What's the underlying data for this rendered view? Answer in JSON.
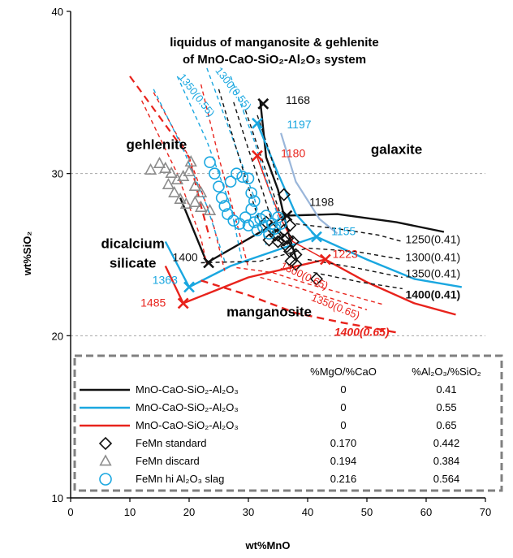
{
  "chart_data": {
    "type": "scatter",
    "title_lines": [
      "liquidus of manganosite & gehlenite",
      "of MnO-CaO-SiO₂-Al₂O₃ system"
    ],
    "xlabel": "wt%MnO",
    "ylabel": "wt%SiO₂",
    "xlim": [
      0,
      70
    ],
    "ylim": [
      10,
      40
    ],
    "xticks": [
      0,
      10,
      20,
      30,
      40,
      50,
      60,
      70
    ],
    "yticks": [
      10,
      20,
      30,
      40
    ],
    "ygrid": [
      20,
      30
    ],
    "colors": {
      "black": "#111111",
      "blue": "#1aa7e0",
      "red": "#e8231c",
      "lightblue": "#9ab6da",
      "gray": "#8c8c8c"
    },
    "phase_labels": [
      {
        "text": "gehlenite",
        "x": 14.5,
        "y": 31.5
      },
      {
        "text": "galaxite",
        "x": 55,
        "y": 31.2
      },
      {
        "text": "dicalcium",
        "x": 10.5,
        "y": 25.4
      },
      {
        "text": "silicate",
        "x": 10.5,
        "y": 24.2
      },
      {
        "text": "manganosite",
        "x": 33.5,
        "y": 21.2
      }
    ],
    "point_labels": [
      {
        "text": "1168",
        "x": 36.3,
        "y": 34.3,
        "color": "black",
        "bold": false
      },
      {
        "text": "1197",
        "x": 36.5,
        "y": 32.8,
        "color": "blue",
        "bold": false
      },
      {
        "text": "1180",
        "x": 35.5,
        "y": 31.0,
        "color": "red",
        "bold": false
      },
      {
        "text": "1198",
        "x": 40.3,
        "y": 28.0,
        "color": "black",
        "bold": false
      },
      {
        "text": "1155",
        "x": 44.0,
        "y": 26.2,
        "color": "blue",
        "bold": false
      },
      {
        "text": "1223",
        "x": 44.2,
        "y": 24.8,
        "color": "red",
        "bold": false
      },
      {
        "text": "1400",
        "x": 17.2,
        "y": 24.6,
        "color": "black",
        "bold": false
      },
      {
        "text": "1363",
        "x": 13.8,
        "y": 23.2,
        "color": "blue",
        "bold": false
      },
      {
        "text": "1485",
        "x": 11.8,
        "y": 21.8,
        "color": "red",
        "bold": false
      },
      {
        "text": "1250(0.41)",
        "x": 56.5,
        "y": 25.7,
        "color": "black",
        "bold": false
      },
      {
        "text": "1300(0.41)",
        "x": 56.5,
        "y": 24.6,
        "color": "black",
        "bold": false
      },
      {
        "text": "1350(0.41)",
        "x": 56.5,
        "y": 23.6,
        "color": "black",
        "bold": false
      },
      {
        "text": "1400(0.41)",
        "x": 56.5,
        "y": 22.3,
        "color": "black",
        "bold": true
      },
      {
        "text": "1400(0.65)",
        "x": 44.5,
        "y": 20.0,
        "color": "red",
        "bold": true
      }
    ],
    "rotated_labels": [
      {
        "text": "1350(0.55)",
        "x": 20.8,
        "y": 34.7,
        "angle": 52,
        "color": "blue"
      },
      {
        "text": "1300(0.55)",
        "x": 27.0,
        "y": 35.1,
        "angle": 52,
        "color": "blue"
      },
      {
        "text": "1300(0.65)",
        "x": 39.2,
        "y": 23.5,
        "angle": 25,
        "color": "red"
      },
      {
        "text": "1350(0.65)",
        "x": 44.5,
        "y": 21.6,
        "angle": 22,
        "color": "red"
      }
    ],
    "series": [
      {
        "name": "MnO-CaO-SiO₂-Al₂O₃",
        "mgo_cao": "0",
        "al2o3_sio2": "0.41",
        "color": "black",
        "kind": "line"
      },
      {
        "name": "MnO-CaO-SiO₂-Al₂O₃",
        "mgo_cao": "0",
        "al2o3_sio2": "0.55",
        "color": "blue",
        "kind": "line"
      },
      {
        "name": "MnO-CaO-SiO₂-Al₂O₃",
        "mgo_cao": "0",
        "al2o3_sio2": "0.65",
        "color": "red",
        "kind": "line"
      },
      {
        "name": "FeMn standard",
        "mgo_cao": "0.170",
        "al2o3_sio2": "0.442",
        "color": "black",
        "kind": "diamond",
        "points": [
          [
            33,
            27.0
          ],
          [
            34,
            26.6
          ],
          [
            35,
            26.2
          ],
          [
            36,
            25.9
          ],
          [
            36.5,
            25.5
          ],
          [
            37,
            25.2
          ],
          [
            37.5,
            25.8
          ],
          [
            38,
            25.0
          ],
          [
            37,
            26.8
          ],
          [
            36,
            26.5
          ],
          [
            35,
            25.8
          ],
          [
            34.5,
            26.2
          ],
          [
            33.5,
            25.9
          ],
          [
            36,
            28.7
          ],
          [
            38,
            24.4
          ],
          [
            41.5,
            23.5
          ],
          [
            37.2,
            24.6
          ],
          [
            36.6,
            26.0
          ]
        ]
      },
      {
        "name": "FeMn discard",
        "mgo_cao": "0.194",
        "al2o3_sio2": "0.384",
        "color": "gray",
        "kind": "triangle",
        "points": [
          [
            13.5,
            30.2
          ],
          [
            15,
            30.6
          ],
          [
            16,
            30.3
          ],
          [
            17,
            30.0
          ],
          [
            18,
            29.6
          ],
          [
            19,
            29.8
          ],
          [
            20,
            30.1
          ],
          [
            21,
            29.2
          ],
          [
            22,
            28.8
          ],
          [
            16.5,
            29.3
          ],
          [
            17.5,
            28.8
          ],
          [
            18.5,
            28.4
          ],
          [
            19.5,
            28.1
          ],
          [
            21,
            28.2
          ],
          [
            22,
            27.9
          ],
          [
            23.5,
            27.7
          ],
          [
            20.3,
            30.7
          ]
        ]
      },
      {
        "name": "FeMn hi Al₂O₃ slag",
        "mgo_cao": "0.216",
        "al2o3_sio2": "0.564",
        "color": "blue",
        "kind": "circle",
        "points": [
          [
            23.5,
            30.7
          ],
          [
            24.3,
            30.0
          ],
          [
            25,
            29.2
          ],
          [
            25.5,
            28.5
          ],
          [
            26,
            28.0
          ],
          [
            26.5,
            27.5
          ],
          [
            27,
            29.5
          ],
          [
            28,
            30.0
          ],
          [
            29,
            29.8
          ],
          [
            30,
            29.7
          ],
          [
            30.5,
            28.8
          ],
          [
            31,
            28.3
          ],
          [
            27.5,
            27.1
          ],
          [
            28.5,
            26.9
          ],
          [
            29.5,
            27.3
          ],
          [
            30.5,
            27.8
          ],
          [
            31,
            27.0
          ],
          [
            32,
            27.2
          ],
          [
            32.5,
            26.7
          ],
          [
            33,
            27.4
          ],
          [
            33.5,
            26.3
          ],
          [
            34,
            26.9
          ],
          [
            34.5,
            26.6
          ],
          [
            35,
            27.3
          ],
          [
            35.5,
            26.9
          ],
          [
            31.5,
            26.5
          ],
          [
            30,
            26.8
          ]
        ]
      }
    ],
    "legend": {
      "header_mgo": "%MgO/%CaO",
      "header_al": "%Al₂O₃/%SiO₂",
      "placement": "bottom"
    },
    "lines": [
      {
        "color": "black",
        "dash": false,
        "width": 2.4,
        "points": [
          [
            32,
            34.5
          ],
          [
            33,
            31.0
          ],
          [
            35,
            29.0
          ],
          [
            36,
            27.4
          ],
          [
            45,
            27.5
          ],
          [
            55,
            27.0
          ],
          [
            63,
            26.4
          ]
        ]
      },
      {
        "color": "black",
        "dash": false,
        "width": 2.4,
        "points": [
          [
            36,
            27.4
          ],
          [
            33,
            26.6
          ],
          [
            23,
            24.5
          ],
          [
            18.5,
            28.5
          ]
        ]
      },
      {
        "color": "black",
        "dash": false,
        "width": 2.4,
        "points": [
          [
            36,
            27.4
          ],
          [
            37,
            26.0
          ],
          [
            38.2,
            24.6
          ]
        ]
      },
      {
        "color": "blue",
        "dash": false,
        "width": 2.4,
        "points": [
          [
            31.5,
            33.1
          ],
          [
            35,
            30.0
          ],
          [
            38,
            27.5
          ],
          [
            41.5,
            26.1
          ]
        ]
      },
      {
        "color": "blue",
        "dash": false,
        "width": 2.4,
        "points": [
          [
            41.5,
            26.1
          ],
          [
            50,
            24.7
          ],
          [
            58,
            23.5
          ],
          [
            66,
            23.0
          ]
        ]
      },
      {
        "color": "blue",
        "dash": false,
        "width": 2.4,
        "points": [
          [
            41.5,
            26.1
          ],
          [
            35,
            25.3
          ],
          [
            27,
            24.3
          ],
          [
            20,
            23.0
          ],
          [
            16,
            25.8
          ]
        ]
      },
      {
        "color": "red",
        "dash": false,
        "width": 2.4,
        "points": [
          [
            43,
            24.7
          ],
          [
            50,
            23.3
          ],
          [
            58,
            22.0
          ],
          [
            65,
            21.3
          ]
        ]
      },
      {
        "color": "red",
        "dash": false,
        "width": 2.4,
        "points": [
          [
            43,
            24.7
          ],
          [
            30,
            23.6
          ],
          [
            19,
            22.0
          ],
          [
            16,
            24.3
          ]
        ]
      },
      {
        "color": "lightblue",
        "dash": false,
        "width": 2.2,
        "points": [
          [
            35.5,
            32.5
          ],
          [
            38,
            29.5
          ],
          [
            42,
            27.2
          ],
          [
            45,
            26.3
          ]
        ]
      },
      {
        "color": "red",
        "dash": false,
        "width": 1.5,
        "points": [
          [
            31.5,
            31.0
          ],
          [
            33.5,
            29.0
          ],
          [
            35.5,
            27.2
          ],
          [
            37.5,
            25.8
          ],
          [
            40.5,
            25.2
          ],
          [
            43,
            24.7
          ]
        ]
      },
      {
        "color": "red",
        "dash": true,
        "width": 2.2,
        "points": [
          [
            10,
            36.0
          ],
          [
            16,
            33.0
          ],
          [
            20,
            31.0
          ],
          [
            22,
            28.0
          ],
          [
            23.5,
            26.0
          ]
        ]
      },
      {
        "color": "red",
        "dash": true,
        "width": 2.4,
        "points": [
          [
            22,
            23.4
          ],
          [
            30,
            22.5
          ],
          [
            38,
            21.4
          ],
          [
            46,
            20.8
          ],
          [
            55,
            20.2
          ]
        ]
      },
      {
        "color": "red",
        "dash": true,
        "width": 1.4,
        "points": [
          [
            12,
            34.5
          ],
          [
            18,
            30.0
          ],
          [
            22,
            26.0
          ],
          [
            23,
            24.4
          ]
        ]
      },
      {
        "color": "red",
        "dash": true,
        "width": 1.4,
        "points": [
          [
            14,
            35.0
          ],
          [
            20,
            31.0
          ],
          [
            24,
            27.0
          ],
          [
            26,
            24.0
          ]
        ]
      },
      {
        "color": "red",
        "dash": true,
        "width": 1.4,
        "points": [
          [
            22,
            35.5
          ],
          [
            25,
            31.0
          ],
          [
            28,
            27.0
          ],
          [
            30,
            24.2
          ]
        ]
      },
      {
        "color": "red",
        "dash": true,
        "width": 1.4,
        "points": [
          [
            28,
            24.2
          ],
          [
            34,
            23.9
          ],
          [
            40,
            23.2
          ],
          [
            47,
            22.5
          ],
          [
            53,
            21.9
          ]
        ]
      },
      {
        "color": "red",
        "dash": true,
        "width": 1.4,
        "points": [
          [
            32,
            23.6
          ],
          [
            38,
            23.0
          ],
          [
            44,
            22.3
          ],
          [
            50,
            21.6
          ]
        ]
      },
      {
        "color": "blue",
        "dash": true,
        "width": 1.4,
        "points": [
          [
            14,
            35.2
          ],
          [
            19,
            31.5
          ],
          [
            23,
            28.0
          ],
          [
            26,
            24.6
          ]
        ]
      },
      {
        "color": "blue",
        "dash": true,
        "width": 1.4,
        "points": [
          [
            18,
            36.0
          ],
          [
            23,
            32.0
          ],
          [
            27,
            28.0
          ],
          [
            29,
            24.5
          ]
        ]
      },
      {
        "color": "blue",
        "dash": true,
        "width": 1.4,
        "points": [
          [
            23,
            36.5
          ],
          [
            27,
            32.5
          ],
          [
            31,
            28.5
          ],
          [
            33,
            25.6
          ]
        ]
      },
      {
        "color": "blue",
        "dash": true,
        "width": 1.4,
        "points": [
          [
            27,
            36.0
          ],
          [
            31,
            32.0
          ],
          [
            34,
            28.5
          ],
          [
            35.5,
            26.8
          ]
        ]
      },
      {
        "color": "black",
        "dash": true,
        "width": 1.4,
        "points": [
          [
            25,
            35.2
          ],
          [
            28,
            31.5
          ],
          [
            31,
            28.0
          ],
          [
            32.5,
            26.3
          ]
        ]
      },
      {
        "color": "black",
        "dash": true,
        "width": 1.4,
        "points": [
          [
            27.5,
            34.4
          ],
          [
            30,
            31.5
          ],
          [
            32.5,
            28.8
          ],
          [
            34,
            27.0
          ]
        ]
      },
      {
        "color": "black",
        "dash": true,
        "width": 1.4,
        "points": [
          [
            29.5,
            33.9
          ],
          [
            32,
            31.2
          ],
          [
            34,
            29.0
          ],
          [
            35.5,
            27.4
          ]
        ]
      },
      {
        "color": "black",
        "dash": true,
        "width": 1.4,
        "points": [
          [
            31.5,
            33.6
          ],
          [
            33.5,
            31.4
          ],
          [
            35,
            29.6
          ]
        ]
      },
      {
        "color": "black",
        "dash": true,
        "width": 1.4,
        "points": [
          [
            38,
            26.9
          ],
          [
            45,
            26.6
          ],
          [
            52,
            26.2
          ],
          [
            56,
            25.8
          ]
        ]
      },
      {
        "color": "black",
        "dash": true,
        "width": 1.4,
        "points": [
          [
            22,
            24.5
          ],
          [
            32,
            24.6
          ],
          [
            40,
            25.4
          ],
          [
            48,
            25.2
          ],
          [
            56,
            24.7
          ]
        ]
      },
      {
        "color": "black",
        "dash": true,
        "width": 1.4,
        "points": [
          [
            40,
            24.7
          ],
          [
            48,
            24.2
          ],
          [
            56,
            23.6
          ]
        ]
      },
      {
        "color": "black",
        "dash": true,
        "width": 1.4,
        "points": [
          [
            41,
            23.9
          ],
          [
            49,
            23.3
          ],
          [
            56,
            22.9
          ]
        ]
      }
    ],
    "x_markers": [
      {
        "x": 32.5,
        "y": 34.3,
        "color": "black"
      },
      {
        "x": 31.5,
        "y": 33.1,
        "color": "blue"
      },
      {
        "x": 31.5,
        "y": 31.1,
        "color": "red"
      },
      {
        "x": 36.5,
        "y": 27.4,
        "color": "black"
      },
      {
        "x": 41.5,
        "y": 26.1,
        "color": "blue"
      },
      {
        "x": 43.0,
        "y": 24.7,
        "color": "red"
      },
      {
        "x": 23.3,
        "y": 24.5,
        "color": "black"
      },
      {
        "x": 20.0,
        "y": 23.0,
        "color": "blue"
      },
      {
        "x": 19.0,
        "y": 22.0,
        "color": "red"
      }
    ]
  }
}
